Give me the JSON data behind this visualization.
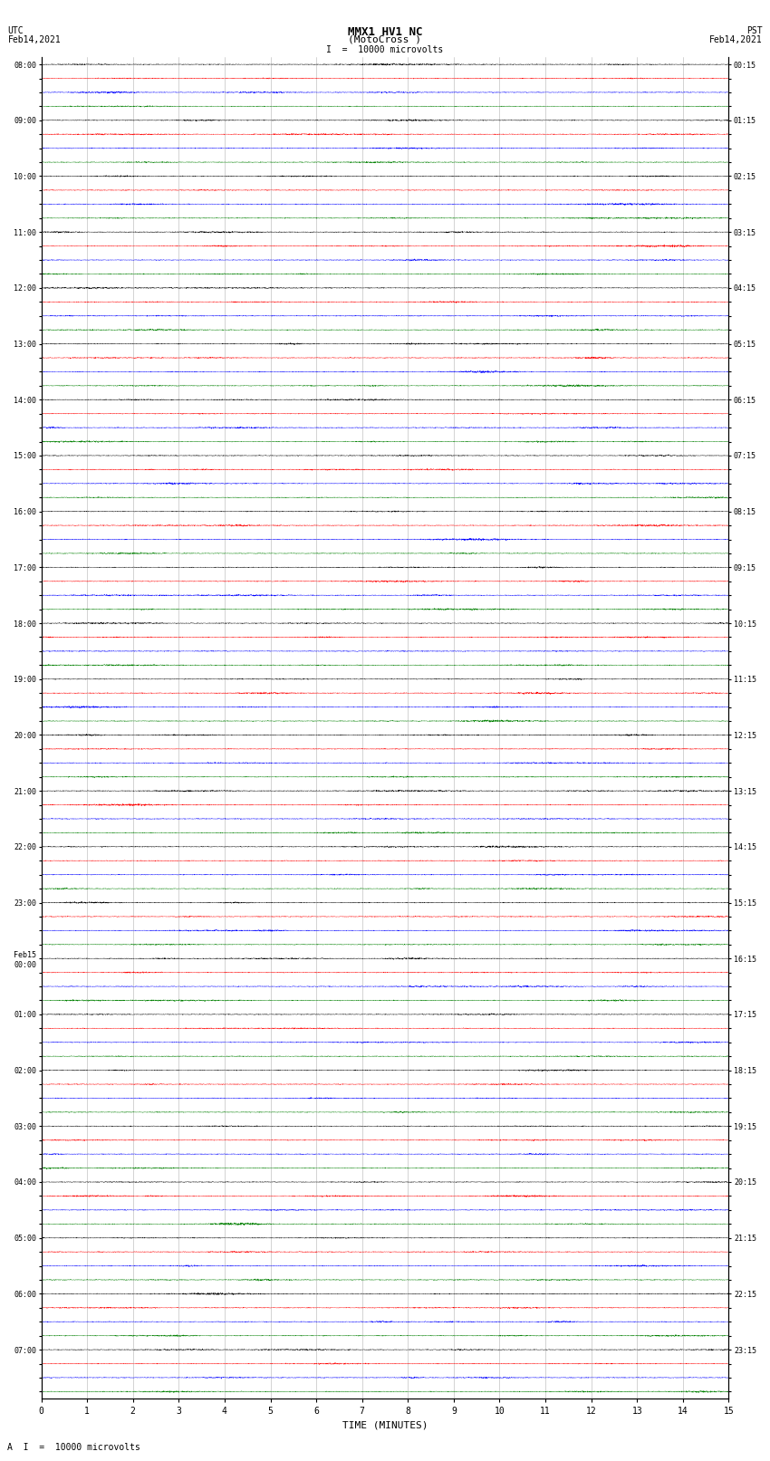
{
  "title_line1": "MMX1 HV1 NC",
  "title_line2": "(MotoCross )",
  "scale_label": "= 10000 microvolts",
  "left_label_top": "UTC",
  "left_label_date": "Feb14,2021",
  "right_label_top": "PST",
  "right_label_date": "Feb14,2021",
  "bottom_xlabel": "TIME (MINUTES)",
  "bottom_scale_label": "= 10000 microvolts",
  "x_ticks": [
    0,
    1,
    2,
    3,
    4,
    5,
    6,
    7,
    8,
    9,
    10,
    11,
    12,
    13,
    14,
    15
  ],
  "minutes_per_row": 15,
  "row_colors": [
    "black",
    "red",
    "blue",
    "green"
  ],
  "n_rows_total": 96,
  "fig_width": 8.5,
  "fig_height": 16.13,
  "bg_color": "white",
  "trace_amplitude": 0.028,
  "noise_frequency": 80,
  "left_time_labels": [
    "08:00",
    "",
    "",
    "",
    "09:00",
    "",
    "",
    "",
    "10:00",
    "",
    "",
    "",
    "11:00",
    "",
    "",
    "",
    "12:00",
    "",
    "",
    "",
    "13:00",
    "",
    "",
    "",
    "14:00",
    "",
    "",
    "",
    "15:00",
    "",
    "",
    "",
    "16:00",
    "",
    "",
    "",
    "17:00",
    "",
    "",
    "",
    "18:00",
    "",
    "",
    "",
    "19:00",
    "",
    "",
    "",
    "20:00",
    "",
    "",
    "",
    "21:00",
    "",
    "",
    "",
    "22:00",
    "",
    "",
    "",
    "23:00",
    "",
    "",
    "",
    "Feb15\n00:00",
    "",
    "",
    "",
    "01:00",
    "",
    "",
    "",
    "02:00",
    "",
    "",
    "",
    "03:00",
    "",
    "",
    "",
    "04:00",
    "",
    "",
    "",
    "05:00",
    "",
    "",
    "",
    "06:00",
    "",
    "",
    "",
    "07:00",
    "",
    "",
    ""
  ],
  "right_time_labels": [
    "00:15",
    "",
    "",
    "",
    "01:15",
    "",
    "",
    "",
    "02:15",
    "",
    "",
    "",
    "03:15",
    "",
    "",
    "",
    "04:15",
    "",
    "",
    "",
    "05:15",
    "",
    "",
    "",
    "06:15",
    "",
    "",
    "",
    "07:15",
    "",
    "",
    "",
    "08:15",
    "",
    "",
    "",
    "09:15",
    "",
    "",
    "",
    "10:15",
    "",
    "",
    "",
    "11:15",
    "",
    "",
    "",
    "12:15",
    "",
    "",
    "",
    "13:15",
    "",
    "",
    "",
    "14:15",
    "",
    "",
    "",
    "15:15",
    "",
    "",
    "",
    "16:15",
    "",
    "",
    "",
    "17:15",
    "",
    "",
    "",
    "18:15",
    "",
    "",
    "",
    "19:15",
    "",
    "",
    "",
    "20:15",
    "",
    "",
    "",
    "21:15",
    "",
    "",
    "",
    "22:15",
    "",
    "",
    "",
    "23:15",
    "",
    "",
    ""
  ]
}
